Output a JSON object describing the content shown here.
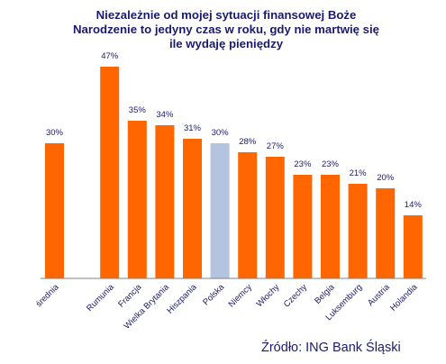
{
  "chart_data": {
    "type": "bar",
    "title_lines": [
      "Niezależnie od mojej sytuacji finansowej Boże",
      "Narodzenie to jedyny czas w roku, gdy nie martwię się",
      "ile wydaję pieniędzy"
    ],
    "categories": [
      "średnia",
      "",
      "Rumunia",
      "Francja",
      "Wielka Brytania",
      "Hiszpania",
      "Polska",
      "Niemcy",
      "Włochy",
      "Czechy",
      "Belgia",
      "Luksemburg",
      "Austria",
      "Holandia"
    ],
    "values": [
      30,
      null,
      47,
      35,
      34,
      31,
      30,
      28,
      27,
      23,
      23,
      21,
      20,
      14
    ],
    "value_labels": [
      "30%",
      "",
      "47%",
      "35%",
      "34%",
      "31%",
      "30%",
      "28%",
      "27%",
      "23%",
      "23%",
      "21%",
      "20%",
      "14%"
    ],
    "highlight": "Polska",
    "ylim": [
      0,
      50
    ],
    "colors": {
      "bar": "#ff6600",
      "highlight": "#b4c3e0",
      "text": "#1a1a6e",
      "axis": "#808080"
    }
  },
  "source": "Źródło: ING Bank Śląski"
}
